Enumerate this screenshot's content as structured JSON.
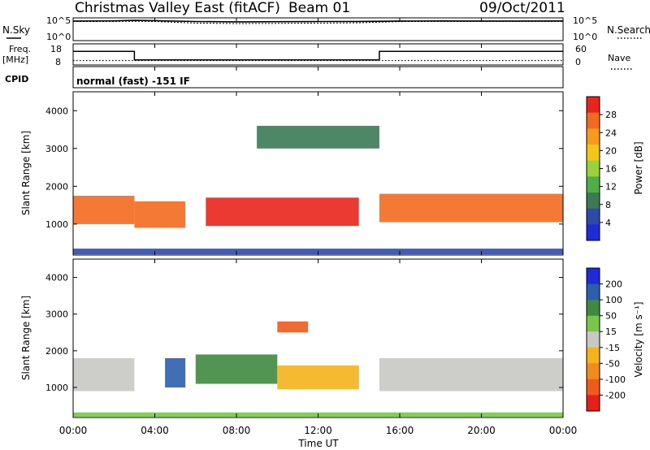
{
  "header": {
    "title": "Christmas Valley East (fitACF)",
    "beam": "Beam 01",
    "date": "09/Oct/2011"
  },
  "noise_panel": {
    "left_label": "N.Sky",
    "left_ticks": [
      "10^5",
      "10^0"
    ],
    "right_label": "N.Search",
    "right_ticks": [
      "10^5",
      "10^0"
    ]
  },
  "freq_panel": {
    "left_label_1": "Freq.",
    "left_label_2": "[MHz]",
    "left_ticks": [
      "18",
      "8"
    ],
    "right_label": "Nave",
    "right_ticks": [
      "60",
      "0"
    ]
  },
  "cpid": {
    "label": "CPID",
    "text": "normal (fast) -151 IF"
  },
  "colors": {
    "power_scale": [
      "#1f2bd6",
      "#2e4ba8",
      "#3b7a55",
      "#4fae4a",
      "#9bd23b",
      "#f2c51b",
      "#f59a1e",
      "#f26a1f",
      "#e8251c"
    ],
    "velocity_scale": [
      "#1f2bd6",
      "#2b5fae",
      "#3f8a3f",
      "#79c74a",
      "#c8c8c4",
      "#f4b21c",
      "#f28a1e",
      "#ef5a1e",
      "#e51f1b"
    ],
    "ground_scatter": "#c8c8c4"
  },
  "chart_data": [
    {
      "type": "line",
      "panel": "noise",
      "series": [
        {
          "name": "N.Sky",
          "x": [
            "00:00",
            "02:00",
            "03:00",
            "04:00",
            "06:00",
            "08:00",
            "10:00",
            "12:00",
            "14:00",
            "16:00",
            "18:00",
            "20:00",
            "22:00",
            "00:00"
          ],
          "values": [
            40000,
            45000,
            60000,
            50000,
            30000,
            25000,
            28000,
            30000,
            32000,
            40000,
            42000,
            40000,
            41000,
            42000
          ]
        },
        {
          "name": "N.Search",
          "x": [
            "00:00",
            "02:00",
            "03:00",
            "04:00",
            "06:00",
            "08:00",
            "10:00",
            "12:00",
            "14:00",
            "16:00",
            "18:00",
            "20:00",
            "22:00",
            "00:00"
          ],
          "values": [
            30000,
            32000,
            35000,
            30000,
            12000,
            9000,
            10000,
            12000,
            14000,
            30000,
            32000,
            31000,
            31000,
            32000
          ]
        }
      ],
      "ylim": [
        "10^0",
        "10^5"
      ]
    },
    {
      "type": "line",
      "panel": "frequency",
      "series": [
        {
          "name": "Freq.",
          "x": [
            "00:00",
            "03:00",
            "03:00",
            "15:00",
            "15:00",
            "00:00"
          ],
          "values": [
            15,
            15,
            10,
            10,
            15,
            15
          ]
        },
        {
          "name": "Nave",
          "x": [
            "00:00",
            "24:00"
          ],
          "values": [
            10,
            10
          ]
        }
      ],
      "ylim_left": [
        8,
        18
      ],
      "ylim_right": [
        0,
        60
      ]
    },
    {
      "type": "heatmap",
      "panel": "power",
      "xlabel": "Time UT",
      "ylabel": "Slant Range [km]",
      "x_ticks": [
        "00:00",
        "04:00",
        "08:00",
        "12:00",
        "16:00",
        "20:00",
        "00:00"
      ],
      "y_ticks": [
        1000,
        2000,
        3000,
        4000
      ],
      "ylim": [
        180,
        4500
      ],
      "colorbar_label": "Power [dB]",
      "colorbar_ticks": [
        4,
        8,
        12,
        16,
        20,
        24,
        28
      ],
      "colorbar_range": [
        0,
        30
      ],
      "bands": [
        {
          "x": [
            0,
            3
          ],
          "range": [
            1000,
            1750
          ],
          "level": 25
        },
        {
          "x": [
            3,
            5.5
          ],
          "range": [
            900,
            1600
          ],
          "level": 26
        },
        {
          "x": [
            6.5,
            14
          ],
          "range": [
            950,
            1700
          ],
          "level": 27
        },
        {
          "x": [
            15,
            24
          ],
          "range": [
            1050,
            1800
          ],
          "level": 26
        },
        {
          "x": [
            0,
            24
          ],
          "range": [
            200,
            350
          ],
          "level": 6
        },
        {
          "x": [
            9,
            15
          ],
          "range": [
            3000,
            3600
          ],
          "level": 8
        }
      ]
    },
    {
      "type": "heatmap",
      "panel": "velocity",
      "xlabel": "Time UT",
      "ylabel": "Slant Range [km]",
      "x_ticks": [
        "00:00",
        "04:00",
        "08:00",
        "12:00",
        "16:00",
        "20:00",
        "00:00"
      ],
      "y_ticks": [
        1000,
        2000,
        3000,
        4000
      ],
      "ylim": [
        180,
        4500
      ],
      "colorbar_label": "Velocity [m s^-1]",
      "colorbar_ticks": [
        200,
        100,
        50,
        15,
        -15,
        -50,
        -100,
        -200
      ],
      "colorbar_range": [
        -250,
        250
      ],
      "bands": [
        {
          "x": [
            0,
            3
          ],
          "range": [
            900,
            1800
          ],
          "velocity": 0
        },
        {
          "x": [
            4.5,
            5.5
          ],
          "range": [
            1000,
            1800
          ],
          "velocity": 150
        },
        {
          "x": [
            6,
            10
          ],
          "range": [
            1100,
            1900
          ],
          "velocity": 50
        },
        {
          "x": [
            10,
            14
          ],
          "range": [
            950,
            1600
          ],
          "velocity": -40
        },
        {
          "x": [
            15,
            24
          ],
          "range": [
            900,
            1800
          ],
          "velocity": 0
        },
        {
          "x": [
            10,
            11.5
          ],
          "range": [
            2500,
            2800
          ],
          "velocity": -200
        },
        {
          "x": [
            0,
            24
          ],
          "range": [
            200,
            320
          ],
          "velocity": 30
        }
      ]
    }
  ],
  "colorbar_power": {
    "label": "Power [dB]",
    "ticks": [
      "28",
      "24",
      "20",
      "16",
      "12",
      "8",
      "4"
    ]
  },
  "colorbar_velocity": {
    "label": "Velocity [m s⁻¹]",
    "ticks": [
      "200",
      "100",
      "50",
      "15",
      "-15",
      "-50",
      "-100",
      "-200"
    ]
  },
  "x_axis": {
    "label": "Time UT",
    "ticks": [
      "00:00",
      "04:00",
      "08:00",
      "12:00",
      "16:00",
      "20:00",
      "00:00"
    ]
  },
  "y_axis": {
    "label": "Slant Range [km]",
    "ticks": [
      "4000",
      "3000",
      "2000",
      "1000"
    ]
  }
}
